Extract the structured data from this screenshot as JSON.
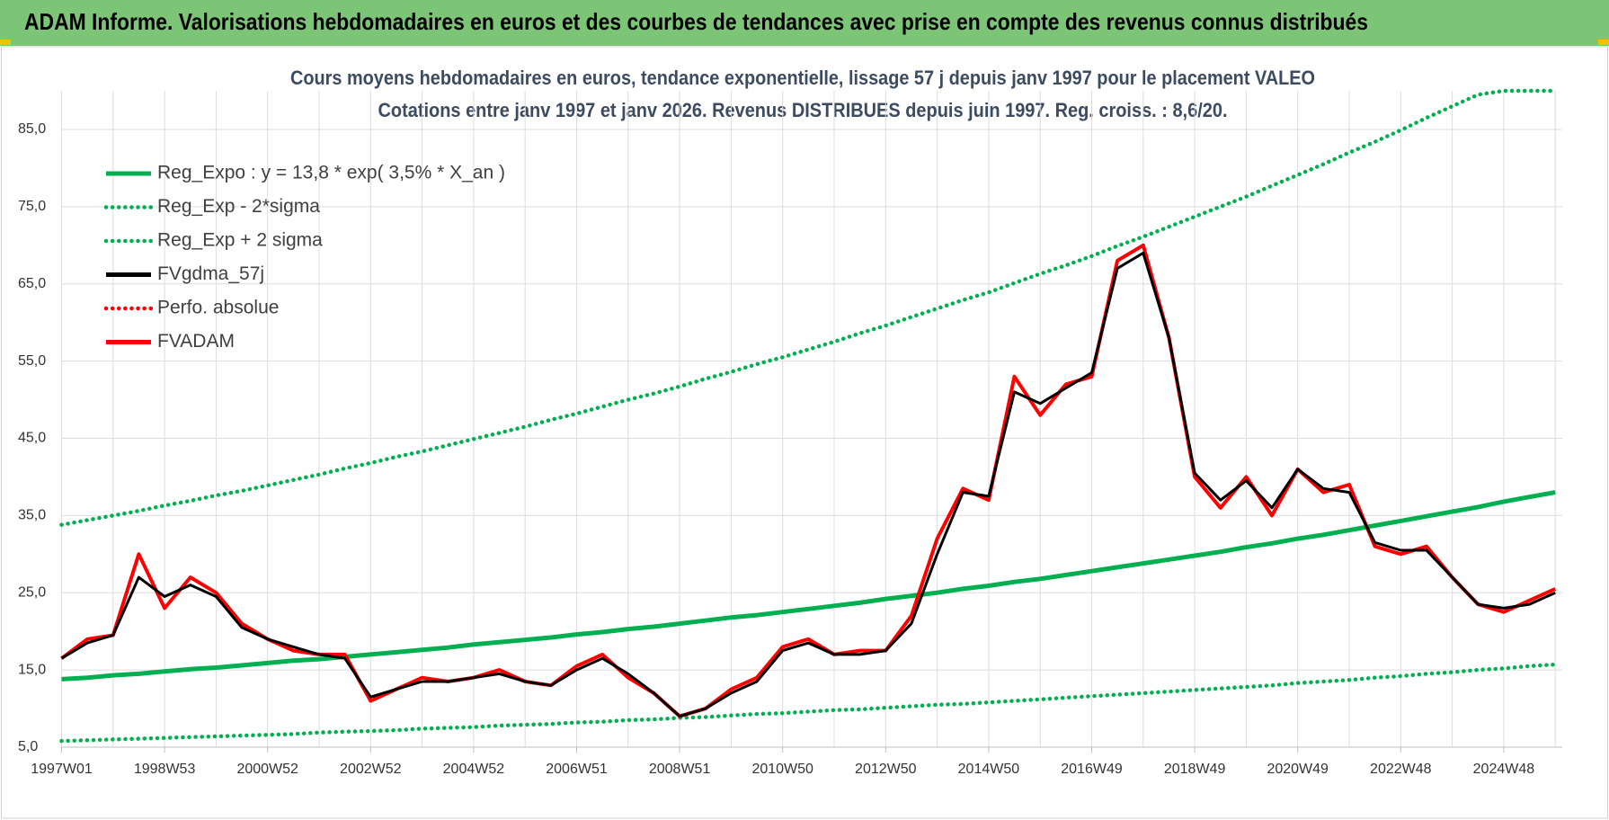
{
  "header": {
    "title": "ADAM Informe. Valorisations hebdomadaires en euros et des courbes de tendances avec prise en compte des revenus connus distribués"
  },
  "chart_data": {
    "type": "line",
    "title": "Cours moyens hebdomadaires en euros, tendance exponentielle, lissage 57 j depuis janv 1997 pour le placement VALEO",
    "subtitle": "Cotations entre janv 1997 et janv 2026. Revenus DISTRIBUES depuis juin 1997. Reg. croiss. : 8,6/20.",
    "categories": [
      "1997W01",
      null,
      null,
      null,
      "1998W53",
      null,
      null,
      null,
      "2000W52",
      null,
      null,
      null,
      "2002W52",
      null,
      null,
      null,
      "2004W52",
      null,
      null,
      null,
      "2006W51",
      null,
      null,
      null,
      "2008W51",
      null,
      null,
      null,
      "2010W50",
      null,
      null,
      null,
      "2012W50",
      null,
      null,
      null,
      "2014W50",
      null,
      null,
      null,
      "2016W49",
      null,
      null,
      null,
      "2018W49",
      null,
      null,
      null,
      "2020W49",
      null,
      null,
      null,
      "2022W48",
      null,
      null,
      null,
      "2024W48",
      null,
      null
    ],
    "ylim": [
      5,
      90
    ],
    "yticks": [
      {
        "value": 5,
        "label": "5,0"
      },
      {
        "value": 15,
        "label": "15,0"
      },
      {
        "value": 25,
        "label": "25,0"
      },
      {
        "value": 35,
        "label": "35,0"
      },
      {
        "value": 45,
        "label": "45,0"
      },
      {
        "value": 55,
        "label": "55,0"
      },
      {
        "value": 65,
        "label": "65,0"
      },
      {
        "value": 75,
        "label": "75,0"
      },
      {
        "value": 85,
        "label": "85,0"
      }
    ],
    "grid": true,
    "legend": "top-left",
    "series": [
      {
        "name": "Reg_Expo : y = 13,8 * exp( 3,5% *  X_an )",
        "color": "#00b050",
        "style": "solid",
        "values": [
          13.8,
          14.0,
          14.3,
          14.5,
          14.8,
          15.1,
          15.3,
          15.6,
          15.9,
          16.2,
          16.4,
          16.7,
          17.0,
          17.3,
          17.6,
          17.9,
          18.3,
          18.6,
          18.9,
          19.2,
          19.6,
          19.9,
          20.3,
          20.6,
          21.0,
          21.4,
          21.8,
          22.1,
          22.5,
          22.9,
          23.3,
          23.7,
          24.2,
          24.6,
          25.0,
          25.5,
          25.9,
          26.4,
          26.8,
          27.3,
          27.8,
          28.3,
          28.8,
          29.3,
          29.8,
          30.3,
          30.9,
          31.4,
          32.0,
          32.5,
          33.1,
          33.7,
          34.3,
          34.9,
          35.5,
          36.1,
          36.8,
          37.4,
          38.0
        ]
      },
      {
        "name": "Reg_Exp - 2*sigma",
        "color": "#00b050",
        "style": "dotted",
        "values": [
          5.8,
          5.9,
          6.0,
          6.1,
          6.2,
          6.3,
          6.4,
          6.5,
          6.6,
          6.7,
          6.9,
          7.0,
          7.1,
          7.2,
          7.4,
          7.5,
          7.6,
          7.8,
          7.9,
          8.0,
          8.2,
          8.3,
          8.5,
          8.6,
          8.8,
          8.9,
          9.1,
          9.3,
          9.4,
          9.6,
          9.8,
          9.9,
          10.1,
          10.3,
          10.5,
          10.6,
          10.8,
          11.0,
          11.2,
          11.4,
          11.6,
          11.8,
          12.0,
          12.2,
          12.4,
          12.6,
          12.8,
          13.0,
          13.3,
          13.5,
          13.7,
          14.0,
          14.2,
          14.5,
          14.7,
          15.0,
          15.2,
          15.5,
          15.7
        ]
      },
      {
        "name": "Reg_Exp + 2 sigma",
        "color": "#00b050",
        "style": "dotted",
        "values": [
          33.8,
          34.4,
          35.0,
          35.6,
          36.3,
          36.9,
          37.6,
          38.2,
          38.9,
          39.6,
          40.3,
          41.1,
          41.8,
          42.6,
          43.3,
          44.1,
          44.9,
          45.7,
          46.5,
          47.4,
          48.2,
          49.1,
          50.0,
          50.8,
          51.7,
          52.7,
          53.6,
          54.6,
          55.5,
          56.5,
          57.5,
          58.6,
          59.6,
          60.7,
          61.8,
          62.9,
          63.9,
          65.1,
          66.3,
          67.4,
          68.6,
          69.9,
          71.1,
          72.4,
          73.7,
          75.0,
          76.3,
          77.7,
          79.1,
          80.5,
          82.0,
          83.4,
          84.9,
          86.5,
          88.0,
          89.5,
          90,
          90,
          90
        ]
      },
      {
        "name": "FVgdma_57j",
        "color": "#000000",
        "style": "solid",
        "values": [
          16.5,
          18.5,
          19.5,
          27,
          24.5,
          26,
          24.5,
          20.5,
          19,
          18,
          17,
          16.5,
          11.5,
          12.5,
          13.5,
          13.5,
          14,
          14.5,
          13.5,
          13,
          15,
          16.5,
          14.5,
          12,
          9,
          10,
          12,
          13.5,
          17.5,
          18.5,
          17,
          17,
          17.5,
          21,
          30,
          38,
          37.5,
          51,
          49.5,
          51.5,
          53.5,
          67,
          69,
          58,
          40.5,
          37,
          39.5,
          36,
          41,
          38.5,
          38,
          31.5,
          30.5,
          30.5,
          27,
          23.5,
          23,
          23.5,
          25
        ]
      },
      {
        "name": "Perfo. absolue",
        "color": "#ff0000",
        "style": "dotted",
        "values": [
          null,
          null,
          null,
          null,
          null,
          null,
          null,
          null,
          null,
          null,
          null,
          null,
          null,
          null,
          null,
          null,
          null,
          null,
          null,
          null,
          null,
          null,
          null,
          null,
          null,
          null,
          null,
          null,
          null,
          null,
          null,
          null,
          null,
          null,
          null,
          null,
          null,
          null,
          null,
          null,
          null,
          null,
          null,
          null,
          null,
          null,
          null,
          null,
          null,
          null,
          null,
          null,
          null,
          null,
          null,
          null,
          null,
          null,
          null
        ]
      },
      {
        "name": "FVADAM",
        "color": "#ff0000",
        "style": "solid",
        "values": [
          16.5,
          19,
          19.5,
          30,
          23,
          27,
          25,
          21,
          19,
          17.5,
          17,
          17,
          11,
          12.5,
          14,
          13.5,
          14,
          15,
          13.5,
          13,
          15.5,
          17,
          14,
          12,
          9,
          10,
          12.5,
          14,
          18,
          19,
          17,
          17.5,
          17.5,
          22,
          32,
          38.5,
          37,
          53,
          48,
          52,
          53,
          68,
          70,
          58,
          40,
          36,
          40,
          35,
          41,
          38,
          39,
          31,
          30,
          31,
          27,
          23.5,
          22.5,
          24,
          25.5
        ]
      }
    ]
  }
}
